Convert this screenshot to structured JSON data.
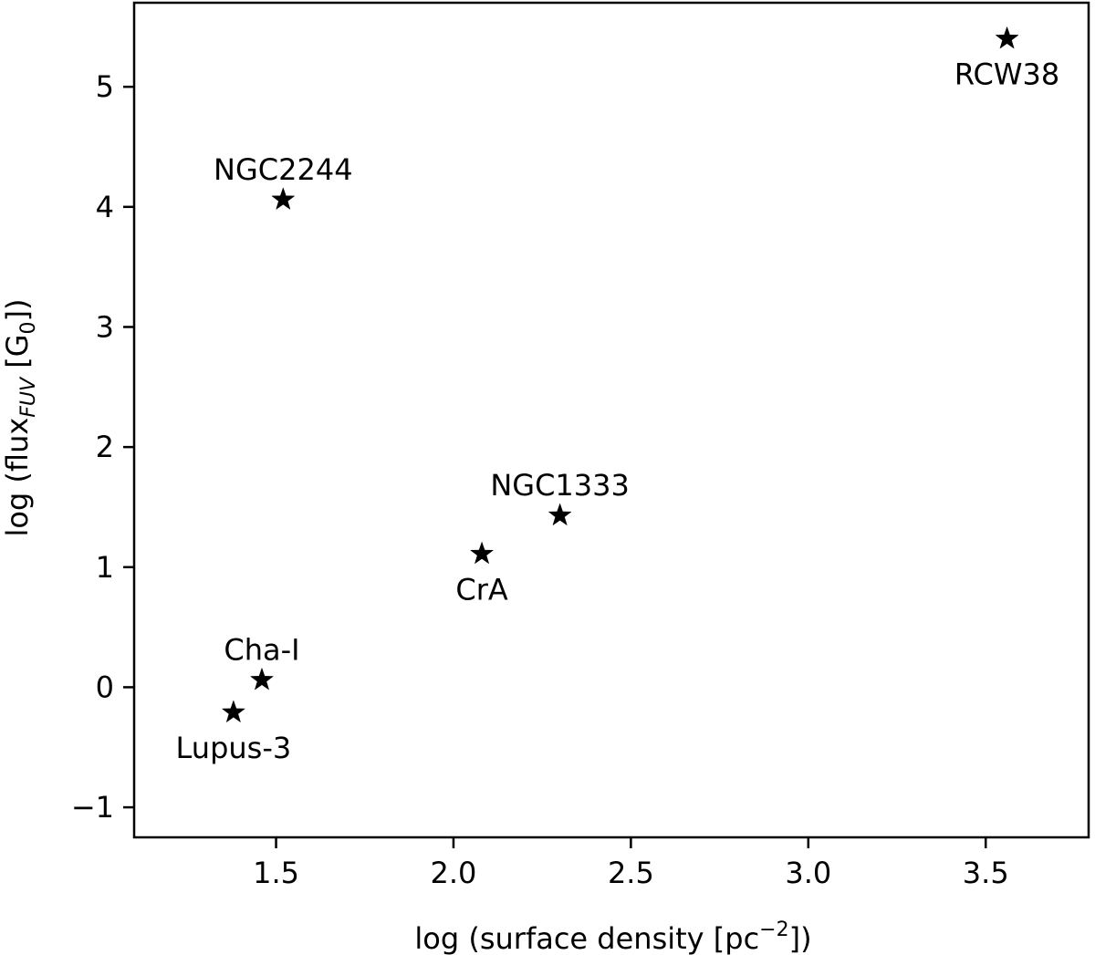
{
  "chart_data": {
    "type": "scatter",
    "title": "",
    "xlabel": {
      "main": "log (surface density [pc",
      "sup": "−2",
      "tail": "])"
    },
    "ylabel": {
      "main": "log (flux",
      "sub": "FUV",
      "mid": " [G",
      "sub2": "0",
      "tail": "])"
    },
    "xlim": [
      1.1,
      3.79
    ],
    "ylim": [
      -1.25,
      5.7
    ],
    "xticks": [
      1.5,
      2.0,
      2.5,
      3.0,
      3.5
    ],
    "xtick_labels": [
      "1.5",
      "2.0",
      "2.5",
      "3.0",
      "3.5"
    ],
    "yticks": [
      -1,
      0,
      1,
      2,
      3,
      4,
      5
    ],
    "ytick_labels": [
      "−1",
      "0",
      "1",
      "2",
      "3",
      "4",
      "5"
    ],
    "grid": false,
    "legend": "none",
    "marker": "star",
    "marker_color": "#000000",
    "points": [
      {
        "label": "RCW38",
        "x": 3.56,
        "y": 5.4,
        "label_pos": "below"
      },
      {
        "label": "NGC2244",
        "x": 1.52,
        "y": 4.06,
        "label_pos": "above"
      },
      {
        "label": "NGC1333",
        "x": 2.3,
        "y": 1.43,
        "label_pos": "above"
      },
      {
        "label": "CrA",
        "x": 2.08,
        "y": 1.11,
        "label_pos": "below"
      },
      {
        "label": "Cha-I",
        "x": 1.46,
        "y": 0.06,
        "label_pos": "above"
      },
      {
        "label": "Lupus-3",
        "x": 1.38,
        "y": -0.21,
        "label_pos": "below"
      }
    ]
  }
}
